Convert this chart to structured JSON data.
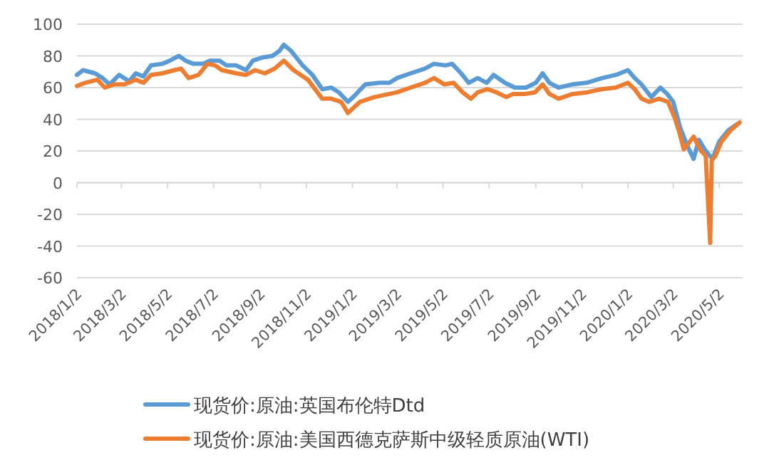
{
  "chart_data": {
    "type": "line",
    "xlim": [
      "2018-01-02",
      "2020-06-02"
    ],
    "ylim": [
      -60,
      100
    ],
    "yticks": [
      -60,
      -40,
      -20,
      0,
      20,
      40,
      60,
      80,
      100
    ],
    "xticks": [
      {
        "value": "2018-01-02",
        "label": "2018/1/2"
      },
      {
        "value": "2018-03-02",
        "label": "2018/3/2"
      },
      {
        "value": "2018-05-02",
        "label": "2018/5/2"
      },
      {
        "value": "2018-07-02",
        "label": "2018/7/2"
      },
      {
        "value": "2018-09-02",
        "label": "2018/9/2"
      },
      {
        "value": "2018-11-02",
        "label": "2018/11/2"
      },
      {
        "value": "2019-01-02",
        "label": "2019/1/2"
      },
      {
        "value": "2019-03-02",
        "label": "2019/3/2"
      },
      {
        "value": "2019-05-02",
        "label": "2019/5/2"
      },
      {
        "value": "2019-07-02",
        "label": "2019/7/2"
      },
      {
        "value": "2019-09-02",
        "label": "2019/9/2"
      },
      {
        "value": "2019-11-02",
        "label": "2019/11/2"
      },
      {
        "value": "2020-01-02",
        "label": "2020/1/2"
      },
      {
        "value": "2020-03-02",
        "label": "2020/3/2"
      },
      {
        "value": "2020-05-02",
        "label": "2020/5/2"
      }
    ],
    "grid": "y",
    "legend": "bottom",
    "series": [
      {
        "name": "现货价:原油:英国布伦特Dtd",
        "color": "#5b9bd5",
        "x": [
          "2018-01-02",
          "2018-01-10",
          "2018-01-26",
          "2018-02-05",
          "2018-02-14",
          "2018-02-27",
          "2018-03-12",
          "2018-03-21",
          "2018-03-31",
          "2018-04-10",
          "2018-04-25",
          "2018-05-05",
          "2018-05-17",
          "2018-05-26",
          "2018-06-05",
          "2018-06-18",
          "2018-06-27",
          "2018-07-10",
          "2018-07-19",
          "2018-08-01",
          "2018-08-14",
          "2018-08-23",
          "2018-09-05",
          "2018-09-18",
          "2018-09-27",
          "2018-10-03",
          "2018-10-13",
          "2018-10-28",
          "2018-11-10",
          "2018-11-23",
          "2018-12-05",
          "2018-12-15",
          "2018-12-27",
          "2019-01-03",
          "2019-01-19",
          "2019-02-07",
          "2019-02-20",
          "2019-03-02",
          "2019-03-20",
          "2019-04-08",
          "2019-04-20",
          "2019-05-05",
          "2019-05-14",
          "2019-05-26",
          "2019-06-05",
          "2019-06-17",
          "2019-06-29",
          "2019-07-08",
          "2019-07-23",
          "2019-08-05",
          "2019-08-20",
          "2019-09-02",
          "2019-09-11",
          "2019-09-20",
          "2019-10-02",
          "2019-10-20",
          "2019-11-08",
          "2019-11-29",
          "2019-12-17",
          "2020-01-02",
          "2020-01-11",
          "2020-01-20",
          "2020-02-02",
          "2020-02-14",
          "2020-02-23",
          "2020-03-02",
          "2020-03-11",
          "2020-03-20",
          "2020-03-29",
          "2020-04-05",
          "2020-04-14",
          "2020-04-23",
          "2020-05-02",
          "2020-05-14",
          "2020-05-26"
        ],
        "values": [
          68,
          71,
          69,
          66,
          62,
          68,
          64,
          69,
          67,
          74,
          75,
          77,
          80,
          77,
          75,
          75,
          77,
          77,
          74,
          74,
          71,
          77,
          79,
          80,
          83,
          87,
          83,
          74,
          68,
          59,
          60,
          57,
          51,
          54,
          62,
          63,
          63,
          66,
          69,
          72,
          75,
          74,
          75,
          69,
          63,
          66,
          63,
          68,
          63,
          60,
          60,
          63,
          69,
          63,
          60,
          62,
          63,
          66,
          68,
          71,
          66,
          62,
          54,
          60,
          56,
          51,
          35,
          24,
          15,
          27,
          20,
          15,
          26,
          33,
          37
        ]
      },
      {
        "name": "现货价:原油:美国西德克萨斯中级轻质原油(WTI)",
        "color": "#ed7d31",
        "x": [
          "2018-01-02",
          "2018-01-13",
          "2018-01-29",
          "2018-02-08",
          "2018-02-20",
          "2018-03-06",
          "2018-03-21",
          "2018-03-31",
          "2018-04-10",
          "2018-04-25",
          "2018-05-11",
          "2018-05-20",
          "2018-05-30",
          "2018-06-12",
          "2018-06-24",
          "2018-07-04",
          "2018-07-13",
          "2018-08-01",
          "2018-08-14",
          "2018-08-26",
          "2018-09-08",
          "2018-09-21",
          "2018-10-03",
          "2018-10-16",
          "2018-11-04",
          "2018-11-23",
          "2018-12-05",
          "2018-12-18",
          "2018-12-27",
          "2019-01-12",
          "2019-01-31",
          "2019-02-20",
          "2019-03-02",
          "2019-03-20",
          "2019-04-08",
          "2019-04-20",
          "2019-05-04",
          "2019-05-16",
          "2019-05-28",
          "2019-06-08",
          "2019-06-17",
          "2019-06-30",
          "2019-07-12",
          "2019-07-25",
          "2019-08-03",
          "2019-08-19",
          "2019-09-01",
          "2019-09-11",
          "2019-09-20",
          "2019-10-02",
          "2019-10-21",
          "2019-11-09",
          "2019-11-28",
          "2019-12-17",
          "2020-01-02",
          "2020-01-11",
          "2020-01-20",
          "2020-01-30",
          "2020-02-12",
          "2020-02-24",
          "2020-03-04",
          "2020-03-10",
          "2020-03-16",
          "2020-03-29",
          "2020-04-08",
          "2020-04-14",
          "2020-04-20",
          "2020-04-22",
          "2020-04-27",
          "2020-05-05",
          "2020-05-17",
          "2020-05-29"
        ],
        "values": [
          61,
          63,
          65,
          60,
          62,
          62,
          65,
          63,
          68,
          69,
          71,
          72,
          66,
          68,
          75,
          74,
          71,
          69,
          68,
          71,
          69,
          72,
          77,
          71,
          65,
          53,
          53,
          51,
          44,
          51,
          54,
          56,
          57,
          60,
          63,
          66,
          62,
          63,
          57,
          53,
          57,
          59,
          57,
          54,
          56,
          56,
          57,
          62,
          56,
          53,
          56,
          57,
          59,
          60,
          63,
          59,
          53,
          51,
          53,
          51,
          41,
          32,
          21,
          29,
          20,
          17,
          -38,
          14,
          17,
          26,
          33,
          38
        ]
      }
    ]
  }
}
